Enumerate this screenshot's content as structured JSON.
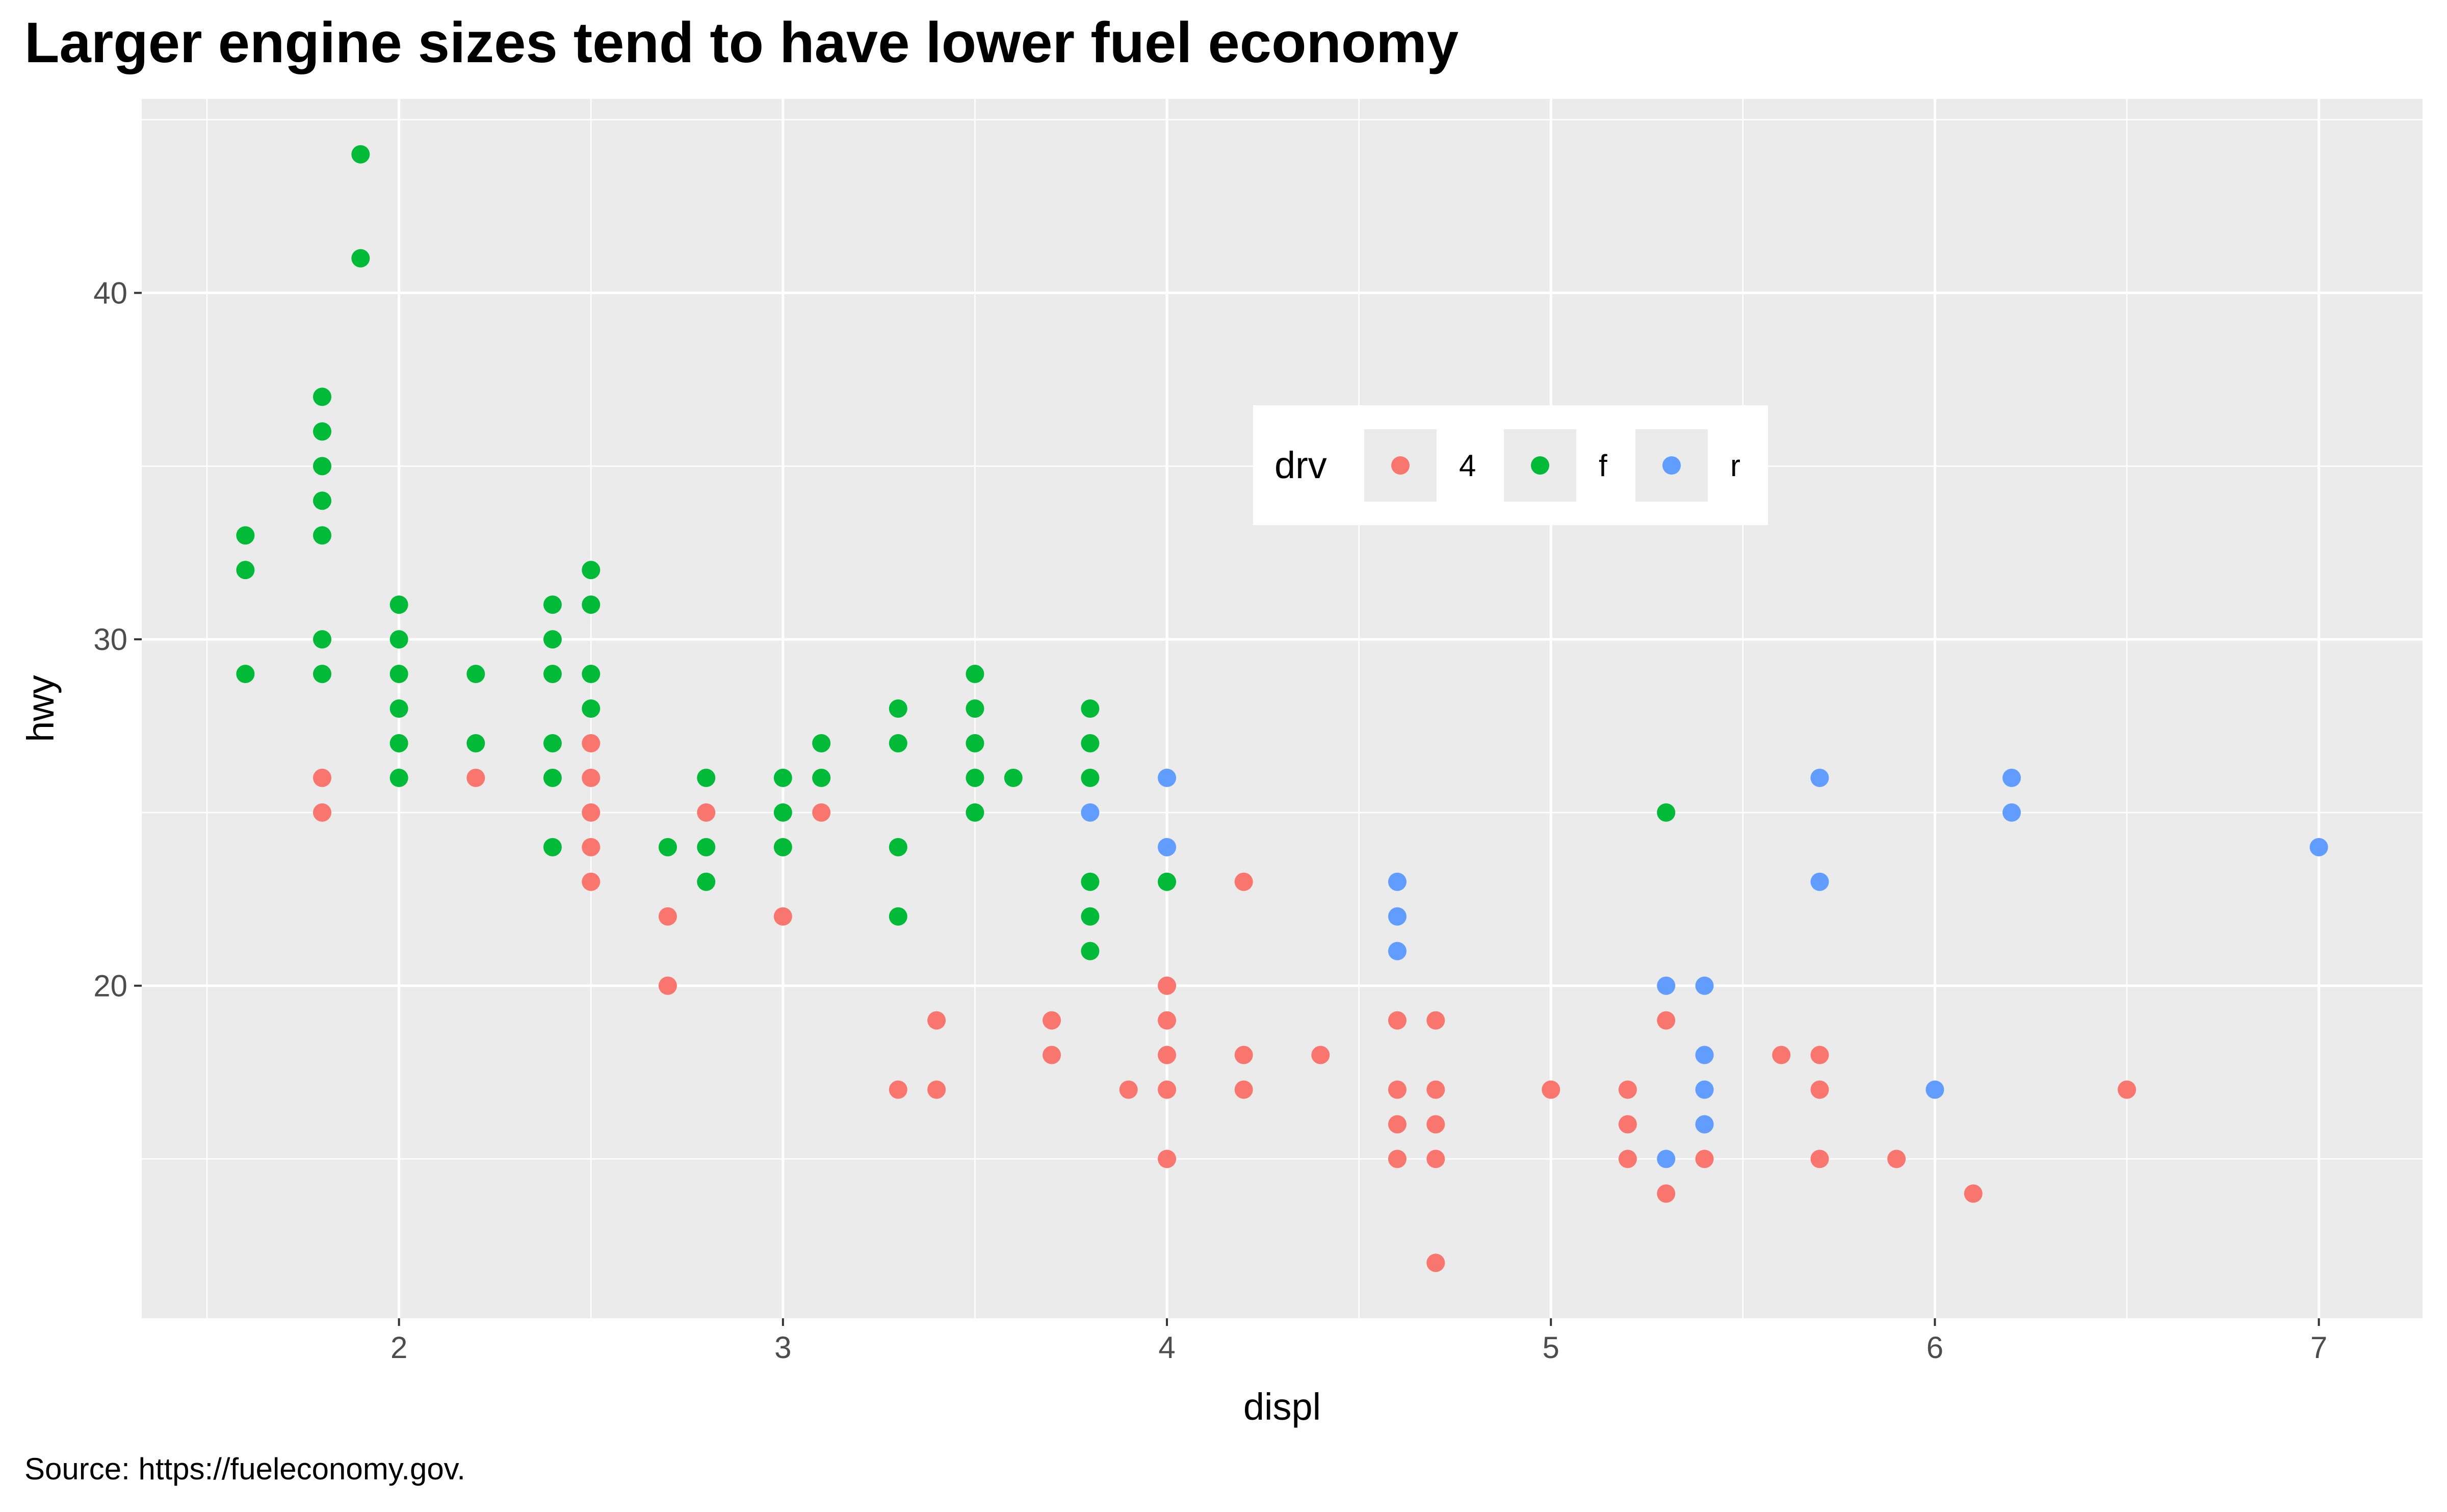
{
  "chart_data": {
    "type": "scatter",
    "title": "Larger engine sizes tend to have lower fuel economy",
    "xlabel": "displ",
    "ylabel": "hwy",
    "caption": "Source: https://fueleconomy.gov.",
    "xlim": [
      1.33,
      7.27
    ],
    "ylim": [
      10.4,
      45.6
    ],
    "x_ticks": [
      2,
      3,
      4,
      5,
      6,
      7
    ],
    "y_ticks": [
      20,
      30,
      40
    ],
    "x_minor_ticks": [
      1.5,
      2.5,
      3.5,
      4.5,
      5.5,
      6.5
    ],
    "y_minor_ticks": [
      15,
      25,
      35,
      45
    ],
    "grid": true,
    "panel_background": "#ebebeb",
    "grid_color": "#ffffff",
    "legend": {
      "title": "drv",
      "position": "inside-top-right",
      "entries": [
        {
          "label": "4",
          "color": "#f8766d"
        },
        {
          "label": "f",
          "color": "#00ba38"
        },
        {
          "label": "r",
          "color": "#619cff"
        }
      ]
    },
    "series": [
      {
        "name": "4",
        "color": "#f8766d",
        "points": [
          [
            1.8,
            26
          ],
          [
            1.8,
            25
          ],
          [
            2.2,
            26
          ],
          [
            2.5,
            27
          ],
          [
            2.5,
            26
          ],
          [
            2.5,
            25
          ],
          [
            2.5,
            24
          ],
          [
            2.5,
            23
          ],
          [
            2.7,
            22
          ],
          [
            2.7,
            20
          ],
          [
            2.8,
            25
          ],
          [
            3.0,
            22
          ],
          [
            3.1,
            25
          ],
          [
            3.3,
            17
          ],
          [
            3.4,
            19
          ],
          [
            3.4,
            17
          ],
          [
            3.7,
            19
          ],
          [
            3.7,
            18
          ],
          [
            3.9,
            17
          ],
          [
            4.0,
            20
          ],
          [
            4.0,
            19
          ],
          [
            4.0,
            18
          ],
          [
            4.0,
            17
          ],
          [
            4.0,
            15
          ],
          [
            4.2,
            23
          ],
          [
            4.2,
            18
          ],
          [
            4.2,
            17
          ],
          [
            4.4,
            18
          ],
          [
            4.6,
            19
          ],
          [
            4.6,
            17
          ],
          [
            4.6,
            16
          ],
          [
            4.6,
            15
          ],
          [
            4.7,
            19
          ],
          [
            4.7,
            17
          ],
          [
            4.7,
            16
          ],
          [
            4.7,
            15
          ],
          [
            4.7,
            12
          ],
          [
            5.0,
            17
          ],
          [
            5.2,
            17
          ],
          [
            5.2,
            16
          ],
          [
            5.2,
            15
          ],
          [
            5.3,
            19
          ],
          [
            5.3,
            14
          ],
          [
            5.4,
            15
          ],
          [
            5.6,
            18
          ],
          [
            5.7,
            18
          ],
          [
            5.7,
            17
          ],
          [
            5.7,
            15
          ],
          [
            5.9,
            15
          ],
          [
            6.1,
            14
          ],
          [
            6.5,
            17
          ]
        ]
      },
      {
        "name": "f",
        "color": "#00ba38",
        "points": [
          [
            1.6,
            33
          ],
          [
            1.6,
            32
          ],
          [
            1.6,
            29
          ],
          [
            1.8,
            37
          ],
          [
            1.8,
            36
          ],
          [
            1.8,
            35
          ],
          [
            1.8,
            34
          ],
          [
            1.8,
            33
          ],
          [
            1.8,
            30
          ],
          [
            1.8,
            29
          ],
          [
            1.9,
            44
          ],
          [
            1.9,
            41
          ],
          [
            2.0,
            31
          ],
          [
            2.0,
            30
          ],
          [
            2.0,
            29
          ],
          [
            2.0,
            28
          ],
          [
            2.0,
            27
          ],
          [
            2.0,
            26
          ],
          [
            2.2,
            29
          ],
          [
            2.2,
            27
          ],
          [
            2.4,
            31
          ],
          [
            2.4,
            30
          ],
          [
            2.4,
            29
          ],
          [
            2.4,
            27
          ],
          [
            2.4,
            26
          ],
          [
            2.4,
            24
          ],
          [
            2.5,
            32
          ],
          [
            2.5,
            31
          ],
          [
            2.5,
            29
          ],
          [
            2.5,
            28
          ],
          [
            2.7,
            24
          ],
          [
            2.8,
            26
          ],
          [
            2.8,
            24
          ],
          [
            2.8,
            23
          ],
          [
            3.0,
            26
          ],
          [
            3.0,
            25
          ],
          [
            3.0,
            24
          ],
          [
            3.1,
            27
          ],
          [
            3.1,
            26
          ],
          [
            3.3,
            28
          ],
          [
            3.3,
            27
          ],
          [
            3.3,
            24
          ],
          [
            3.3,
            22
          ],
          [
            3.5,
            29
          ],
          [
            3.5,
            28
          ],
          [
            3.5,
            27
          ],
          [
            3.5,
            26
          ],
          [
            3.5,
            25
          ],
          [
            3.6,
            26
          ],
          [
            3.8,
            28
          ],
          [
            3.8,
            27
          ],
          [
            3.8,
            26
          ],
          [
            3.8,
            23
          ],
          [
            3.8,
            22
          ],
          [
            3.8,
            21
          ],
          [
            4.0,
            23
          ],
          [
            5.3,
            25
          ]
        ]
      },
      {
        "name": "r",
        "color": "#619cff",
        "points": [
          [
            3.8,
            25
          ],
          [
            4.0,
            26
          ],
          [
            4.0,
            24
          ],
          [
            4.6,
            23
          ],
          [
            4.6,
            22
          ],
          [
            4.6,
            21
          ],
          [
            5.3,
            20
          ],
          [
            5.3,
            15
          ],
          [
            5.4,
            20
          ],
          [
            5.4,
            18
          ],
          [
            5.4,
            17
          ],
          [
            5.4,
            16
          ],
          [
            5.7,
            26
          ],
          [
            5.7,
            23
          ],
          [
            6.0,
            17
          ],
          [
            6.2,
            26
          ],
          [
            6.2,
            25
          ],
          [
            7.0,
            24
          ]
        ]
      }
    ]
  }
}
